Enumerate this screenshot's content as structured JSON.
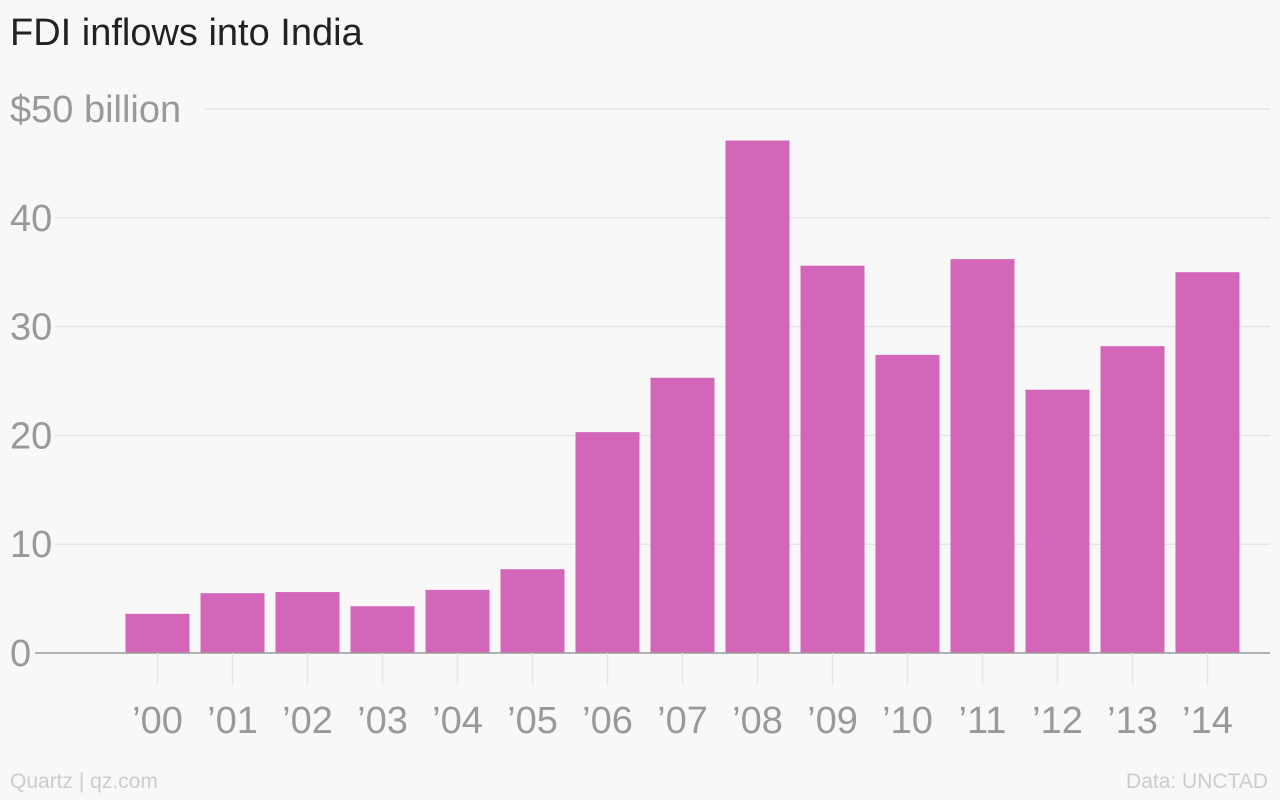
{
  "chart_data": {
    "type": "bar",
    "title": "FDI inflows into India",
    "categories": [
      "’00",
      "’01",
      "’02",
      "’03",
      "’04",
      "’05",
      "’06",
      "’07",
      "’08",
      "’09",
      "’10",
      "’11",
      "’12",
      "’13",
      "’14"
    ],
    "values": [
      3.6,
      5.5,
      5.6,
      4.3,
      5.8,
      7.7,
      20.3,
      25.3,
      47.1,
      35.6,
      27.4,
      36.2,
      24.2,
      28.2,
      35.0
    ],
    "y_ticks": [
      {
        "value": 0,
        "label": "0"
      },
      {
        "value": 10,
        "label": "10"
      },
      {
        "value": 20,
        "label": "20"
      },
      {
        "value": 30,
        "label": "30"
      },
      {
        "value": 40,
        "label": "40"
      },
      {
        "value": 50,
        "label": "$50 billion"
      }
    ],
    "ylim": [
      0,
      50
    ],
    "grid": true,
    "bar_color": "#d366b9",
    "grid_color": "#e6e6e6",
    "axis_color": "#999999",
    "label_color": "#999999"
  },
  "footer": {
    "left": "Quartz | qz.com",
    "right": "Data: UNCTAD"
  }
}
